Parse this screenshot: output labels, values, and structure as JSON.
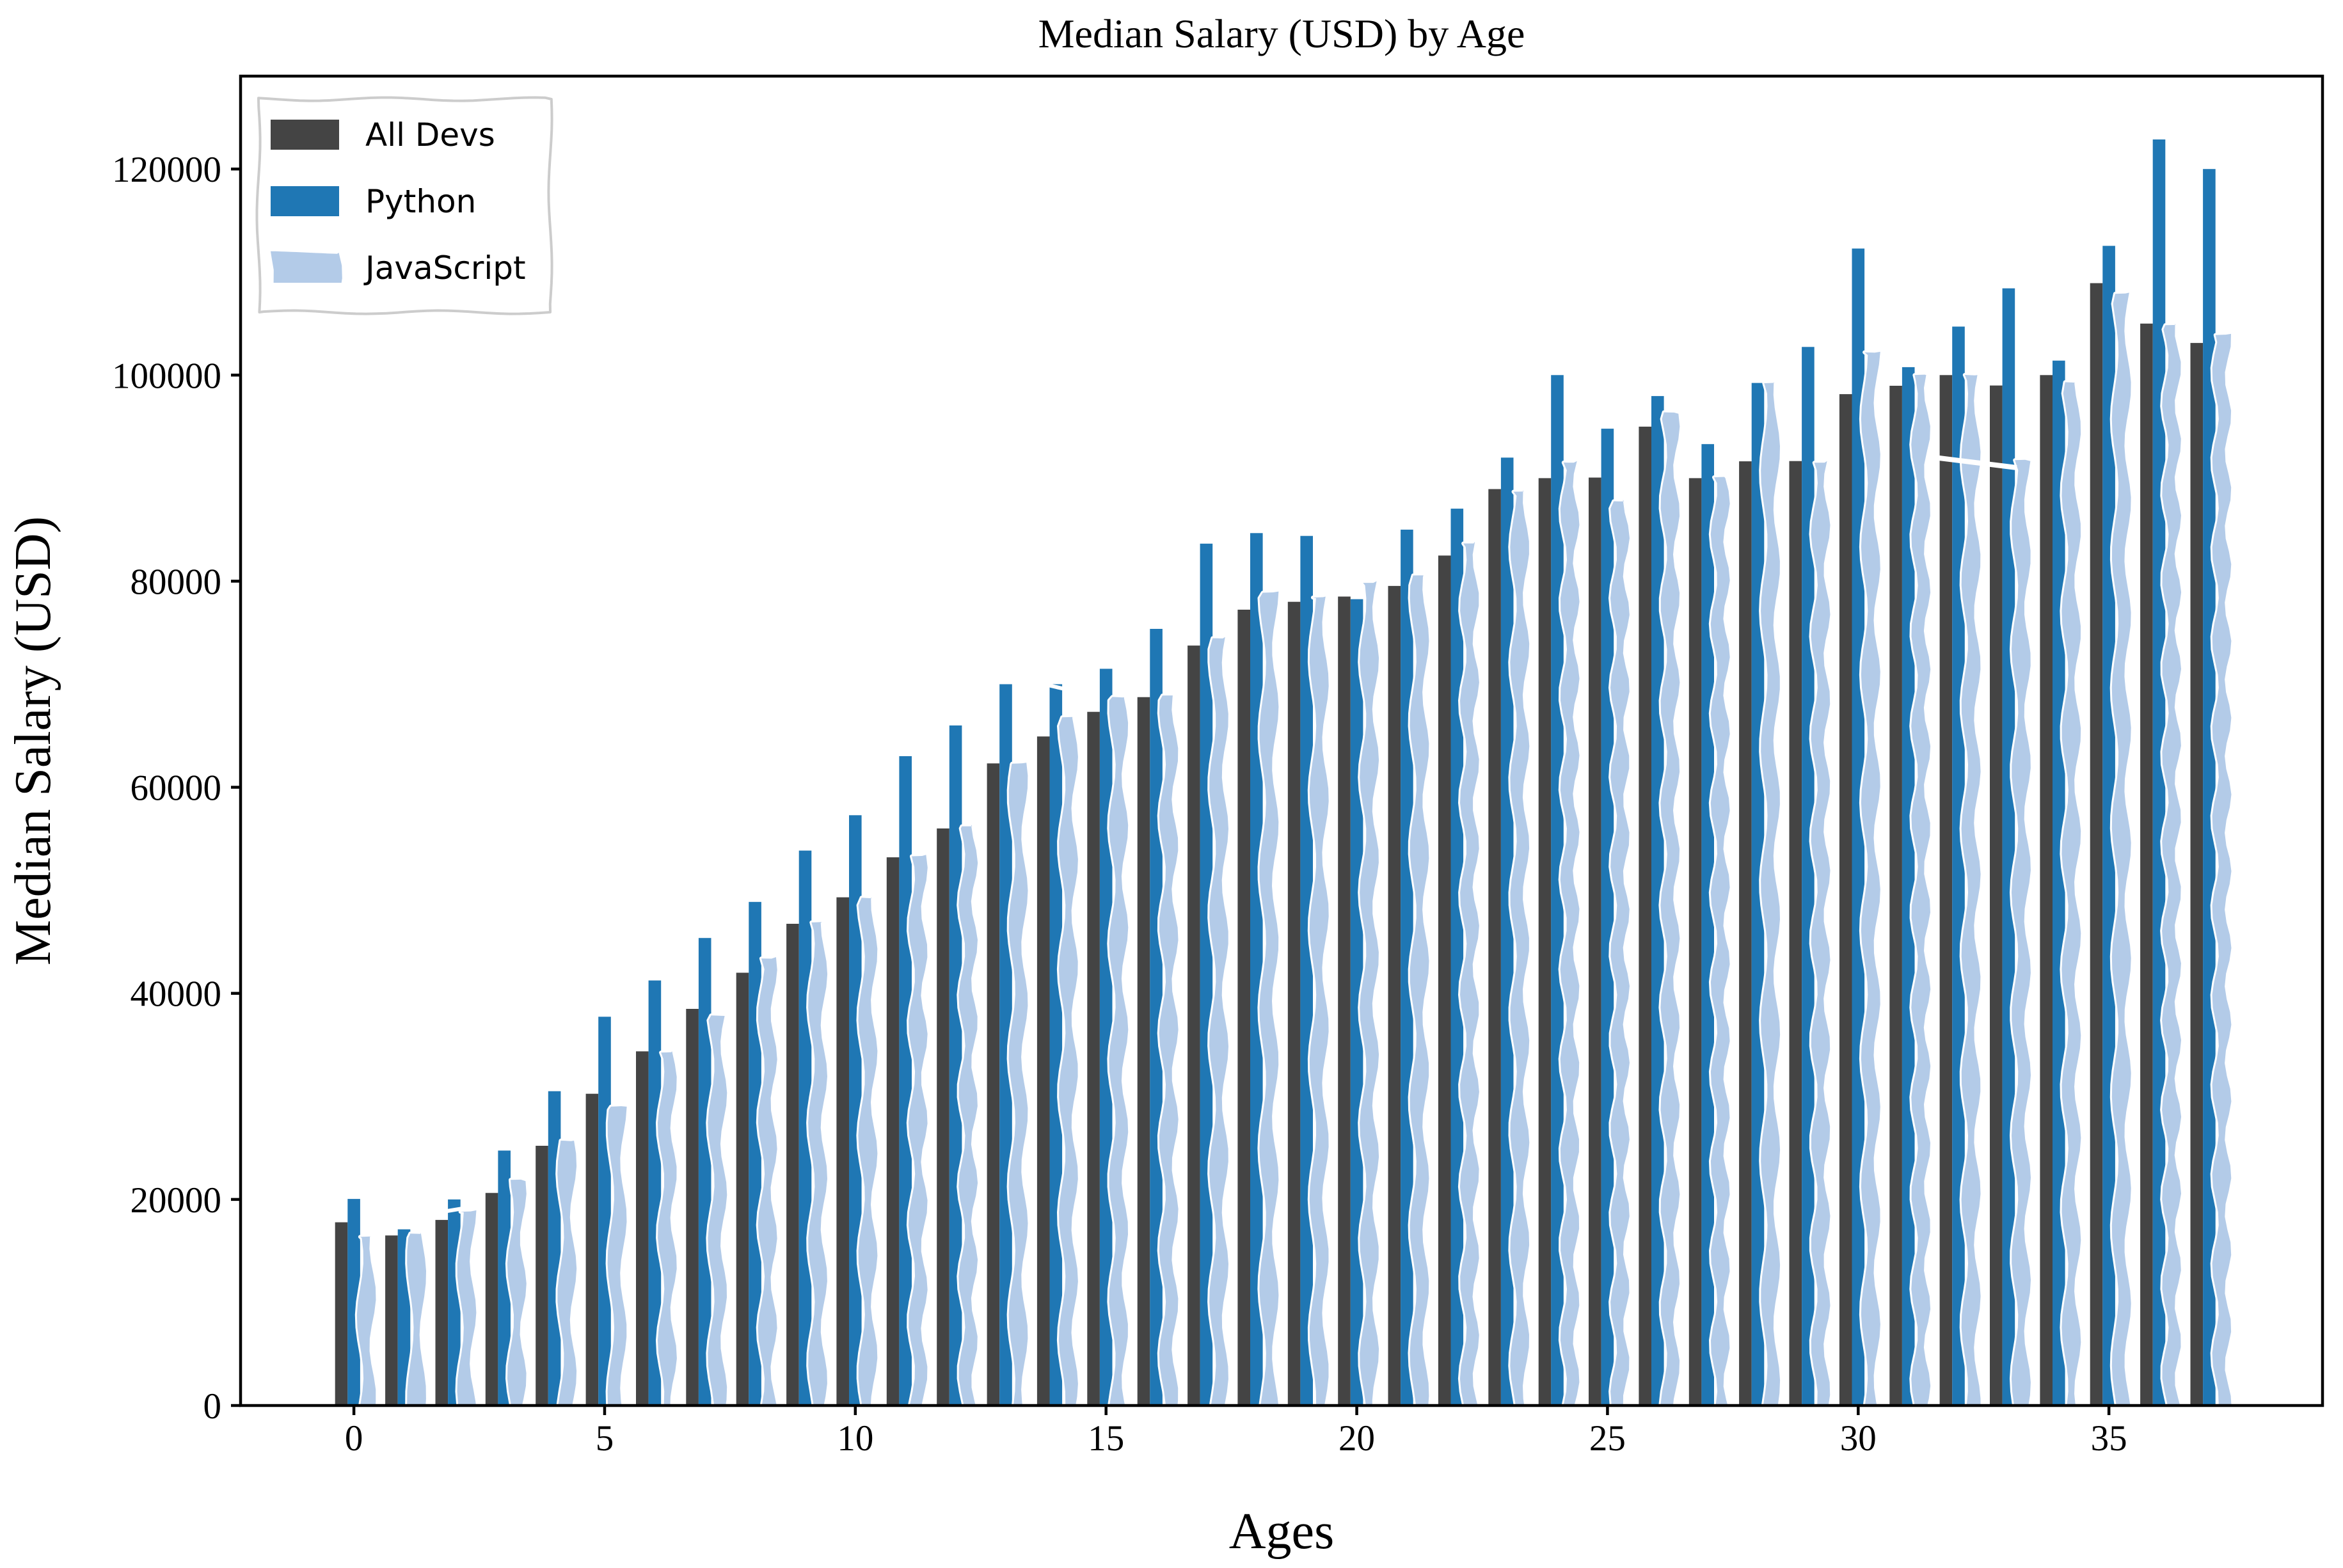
{
  "figure": {
    "background": "#ffffff"
  },
  "chart_data": {
    "type": "bar",
    "title": "Median Salary (USD) by Age",
    "xlabel": "Ages",
    "ylabel": "Median Salary (USD)",
    "x": [
      0,
      1,
      2,
      3,
      4,
      5,
      6,
      7,
      8,
      9,
      10,
      11,
      12,
      13,
      14,
      15,
      16,
      17,
      18,
      19,
      20,
      21,
      22,
      23,
      24,
      25,
      26,
      27,
      28,
      29,
      30,
      31,
      32,
      33,
      34,
      35,
      36,
      37
    ],
    "series": [
      {
        "name": "All Devs",
        "color": "#444444",
        "style": "plain",
        "values": [
          17784,
          16500,
          18012,
          20628,
          25206,
          30252,
          34368,
          38496,
          42000,
          46752,
          49320,
          53200,
          56000,
          62316,
          64928,
          67317,
          68748,
          73752,
          77232,
          78000,
          78508,
          79536,
          82488,
          88935,
          90000,
          90056,
          95000,
          90000,
          91633,
          91660,
          98150,
          98964,
          100000,
          98988,
          100000,
          108923,
          105000,
          103117
        ]
      },
      {
        "name": "Python",
        "color": "#1f77b4",
        "style": "plain",
        "values": [
          20046,
          17100,
          20000,
          24744,
          30500,
          37732,
          41247,
          45372,
          48876,
          53850,
          57287,
          63016,
          65998,
          70003,
          70000,
          71496,
          75370,
          83640,
          84666,
          84392,
          78254,
          85000,
          87038,
          91991,
          100000,
          94796,
          97962,
          93302,
          99240,
          102736,
          112285,
          100771,
          104708,
          108423,
          101407,
          112542,
          122870,
          120000
        ]
      },
      {
        "name": "JavaScript",
        "color": "#b3cbe8",
        "style": "sketch",
        "values": [
          16446,
          16791,
          18942,
          21780,
          25704,
          29000,
          34372,
          37810,
          43515,
          46823,
          49293,
          53437,
          56373,
          62375,
          66674,
          68745,
          68746,
          74583,
          79000,
          78508,
          79996,
          80403,
          83820,
          88833,
          91660,
          87892,
          96243,
          90000,
          99313,
          91660,
          102264,
          100000,
          100000,
          91660,
          99240,
          108000,
          105000,
          104000
        ]
      }
    ],
    "xticks": [
      0,
      5,
      10,
      15,
      20,
      25,
      30,
      35
    ],
    "yticks": [
      0,
      20000,
      40000,
      60000,
      80000,
      100000,
      120000
    ],
    "xlim": [
      -2.26,
      39.26
    ],
    "ylim": [
      0,
      129014
    ],
    "bar_width": 0.25,
    "grid": false,
    "legend": {
      "location": "upper left",
      "frame_color": "#cccccc",
      "entries": [
        "All Devs",
        "Python",
        "JavaScript"
      ]
    }
  }
}
